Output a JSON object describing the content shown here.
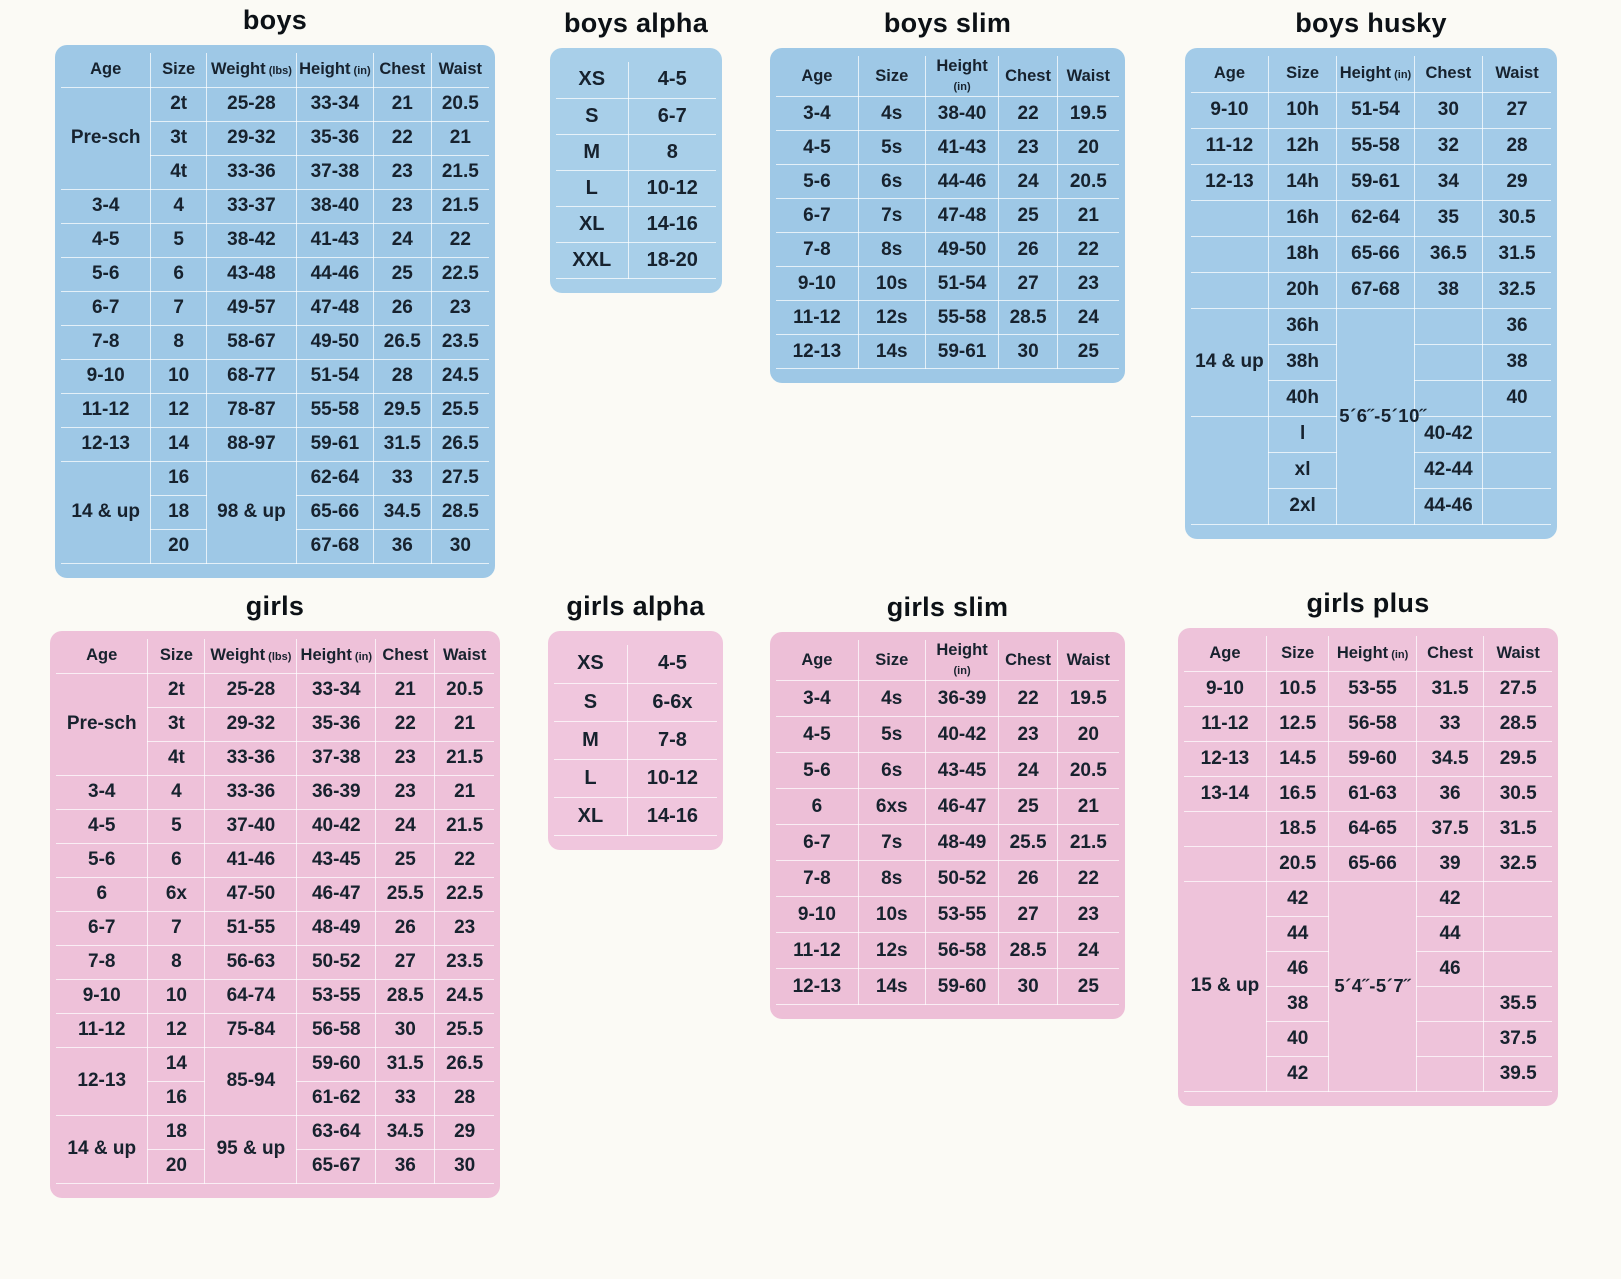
{
  "palette": {
    "page_bg": "#fbfaf5",
    "text": "#17222e",
    "title": "#0c1116",
    "grid_line": "rgba(255,255,255,0.72)"
  },
  "tables": [
    {
      "id": "boys",
      "title": "boys",
      "bg": "#9ec8e6",
      "headers": [
        "Age",
        "Size",
        {
          "text": "Weight",
          "unit": "(lbs)"
        },
        {
          "text": "Height",
          "unit": "(in)"
        },
        "Chest",
        "Waist"
      ],
      "rows": [
        [
          {
            "text": "Pre-sch",
            "rowspan": 3
          },
          "2t",
          "25-28",
          "33-34",
          "21",
          "20.5"
        ],
        [
          "3t",
          "29-32",
          "35-36",
          "22",
          "21"
        ],
        [
          "4t",
          "33-36",
          "37-38",
          "23",
          "21.5"
        ],
        [
          "3-4",
          "4",
          "33-37",
          "38-40",
          "23",
          "21.5"
        ],
        [
          "4-5",
          "5",
          "38-42",
          "41-43",
          "24",
          "22"
        ],
        [
          "5-6",
          "6",
          "43-48",
          "44-46",
          "25",
          "22.5"
        ],
        [
          "6-7",
          "7",
          "49-57",
          "47-48",
          "26",
          "23"
        ],
        [
          "7-8",
          "8",
          "58-67",
          "49-50",
          "26.5",
          "23.5"
        ],
        [
          "9-10",
          "10",
          "68-77",
          "51-54",
          "28",
          "24.5"
        ],
        [
          "11-12",
          "12",
          "78-87",
          "55-58",
          "29.5",
          "25.5"
        ],
        [
          "12-13",
          "14",
          "88-97",
          "59-61",
          "31.5",
          "26.5"
        ],
        [
          {
            "text": "14 & up",
            "rowspan": 3
          },
          "16",
          {
            "text": "98 & up",
            "rowspan": 3
          },
          "62-64",
          "33",
          "27.5"
        ],
        [
          "18",
          "65-66",
          "34.5",
          "28.5"
        ],
        [
          "20",
          "67-68",
          "36",
          "30"
        ]
      ]
    },
    {
      "id": "boys-alpha",
      "title": "boys alpha",
      "bg": "#a8cfe9",
      "headers": null,
      "rows": [
        [
          "XS",
          "4-5"
        ],
        [
          "S",
          "6-7"
        ],
        [
          "M",
          "8"
        ],
        [
          "L",
          "10-12"
        ],
        [
          "XL",
          "14-16"
        ],
        [
          "XXL",
          "18-20"
        ]
      ]
    },
    {
      "id": "boys-slim",
      "title": "boys slim",
      "bg": "#9ec8e6",
      "headers": [
        "Age",
        "Size",
        {
          "text": "Height",
          "unit": "(in)"
        },
        "Chest",
        "Waist"
      ],
      "rows": [
        [
          "3-4",
          "4s",
          "38-40",
          "22",
          "19.5"
        ],
        [
          "4-5",
          "5s",
          "41-43",
          "23",
          "20"
        ],
        [
          "5-6",
          "6s",
          "44-46",
          "24",
          "20.5"
        ],
        [
          "6-7",
          "7s",
          "47-48",
          "25",
          "21"
        ],
        [
          "7-8",
          "8s",
          "49-50",
          "26",
          "22"
        ],
        [
          "9-10",
          "10s",
          "51-54",
          "27",
          "23"
        ],
        [
          "11-12",
          "12s",
          "55-58",
          "28.5",
          "24"
        ],
        [
          "12-13",
          "14s",
          "59-61",
          "30",
          "25"
        ]
      ]
    },
    {
      "id": "boys-husky",
      "title": "boys husky",
      "bg": "#a3cbe8",
      "headers": [
        "Age",
        "Size",
        {
          "text": "Height",
          "unit": "(in)"
        },
        "Chest",
        "Waist"
      ],
      "rows": [
        [
          "9-10",
          "10h",
          "51-54",
          "30",
          "27"
        ],
        [
          "11-12",
          "12h",
          "55-58",
          "32",
          "28"
        ],
        [
          "12-13",
          "14h",
          "59-61",
          "34",
          "29"
        ],
        [
          "",
          "16h",
          "62-64",
          "35",
          "30.5"
        ],
        [
          "",
          "18h",
          "65-66",
          "36.5",
          "31.5"
        ],
        [
          "",
          "20h",
          "67-68",
          "38",
          "32.5"
        ],
        [
          {
            "text": "14 & up",
            "rowspan": 3
          },
          "36h",
          {
            "text": "5´6˝-5´10˝",
            "rowspan": 6,
            "cls": "note"
          },
          "",
          "36"
        ],
        [
          "38h",
          "",
          "38"
        ],
        [
          "40h",
          "",
          "40"
        ],
        [
          {
            "text": "",
            "rowspan": 3
          },
          "l",
          "40-42",
          ""
        ],
        [
          "xl",
          "42-44",
          ""
        ],
        [
          "2xl",
          "44-46",
          ""
        ]
      ]
    },
    {
      "id": "girls",
      "title": "girls",
      "bg": "#eec1d9",
      "headers": [
        "Age",
        "Size",
        {
          "text": "Weight",
          "unit": "(lbs)"
        },
        {
          "text": "Height",
          "unit": "(in)"
        },
        "Chest",
        "Waist"
      ],
      "rows": [
        [
          {
            "text": "Pre-sch",
            "rowspan": 3
          },
          "2t",
          "25-28",
          "33-34",
          "21",
          "20.5"
        ],
        [
          "3t",
          "29-32",
          "35-36",
          "22",
          "21"
        ],
        [
          "4t",
          "33-36",
          "37-38",
          "23",
          "21.5"
        ],
        [
          "3-4",
          "4",
          "33-36",
          "36-39",
          "23",
          "21"
        ],
        [
          "4-5",
          "5",
          "37-40",
          "40-42",
          "24",
          "21.5"
        ],
        [
          "5-6",
          "6",
          "41-46",
          "43-45",
          "25",
          "22"
        ],
        [
          "6",
          "6x",
          "47-50",
          "46-47",
          "25.5",
          "22.5"
        ],
        [
          "6-7",
          "7",
          "51-55",
          "48-49",
          "26",
          "23"
        ],
        [
          "7-8",
          "8",
          "56-63",
          "50-52",
          "27",
          "23.5"
        ],
        [
          "9-10",
          "10",
          "64-74",
          "53-55",
          "28.5",
          "24.5"
        ],
        [
          "11-12",
          "12",
          "75-84",
          "56-58",
          "30",
          "25.5"
        ],
        [
          {
            "text": "12-13",
            "rowspan": 2
          },
          "14",
          {
            "text": "85-94",
            "rowspan": 2
          },
          "59-60",
          "31.5",
          "26.5"
        ],
        [
          "16",
          "61-62",
          "33",
          "28"
        ],
        [
          {
            "text": "14 & up",
            "rowspan": 2
          },
          "18",
          {
            "text": "95 & up",
            "rowspan": 2
          },
          "63-64",
          "34.5",
          "29"
        ],
        [
          "20",
          "65-67",
          "36",
          "30"
        ]
      ]
    },
    {
      "id": "girls-alpha",
      "title": "girls alpha",
      "bg": "#f0c6dd",
      "headers": null,
      "rows": [
        [
          "XS",
          "4-5"
        ],
        [
          "S",
          "6-6x"
        ],
        [
          "M",
          "7-8"
        ],
        [
          "L",
          "10-12"
        ],
        [
          "XL",
          "14-16"
        ]
      ]
    },
    {
      "id": "girls-slim",
      "title": "girls slim",
      "bg": "#edbfd7",
      "headers": [
        "Age",
        "Size",
        {
          "text": "Height",
          "unit": "(in)"
        },
        "Chest",
        "Waist"
      ],
      "rows": [
        [
          "3-4",
          "4s",
          "36-39",
          "22",
          "19.5"
        ],
        [
          "4-5",
          "5s",
          "40-42",
          "23",
          "20"
        ],
        [
          "5-6",
          "6s",
          "43-45",
          "24",
          "20.5"
        ],
        [
          "6",
          "6xs",
          "46-47",
          "25",
          "21"
        ],
        [
          "6-7",
          "7s",
          "48-49",
          "25.5",
          "21.5"
        ],
        [
          "7-8",
          "8s",
          "50-52",
          "26",
          "22"
        ],
        [
          "9-10",
          "10s",
          "53-55",
          "27",
          "23"
        ],
        [
          "11-12",
          "12s",
          "56-58",
          "28.5",
          "24"
        ],
        [
          "12-13",
          "14s",
          "59-60",
          "30",
          "25"
        ]
      ]
    },
    {
      "id": "girls-plus",
      "title": "girls plus",
      "bg": "#eec3da",
      "headers": [
        "Age",
        "Size",
        {
          "text": "Height",
          "unit": "(in)"
        },
        "Chest",
        "Waist"
      ],
      "rows": [
        [
          "9-10",
          "10.5",
          "53-55",
          "31.5",
          "27.5"
        ],
        [
          "11-12",
          "12.5",
          "56-58",
          "33",
          "28.5"
        ],
        [
          "12-13",
          "14.5",
          "59-60",
          "34.5",
          "29.5"
        ],
        [
          "13-14",
          "16.5",
          "61-63",
          "36",
          "30.5"
        ],
        [
          "",
          "18.5",
          "64-65",
          "37.5",
          "31.5"
        ],
        [
          "",
          "20.5",
          "65-66",
          "39",
          "32.5"
        ],
        [
          {
            "text": "15 & up",
            "rowspan": 6
          },
          "42",
          {
            "text": "5´4˝-5´7˝",
            "rowspan": 6,
            "cls": "note"
          },
          "42",
          ""
        ],
        [
          "44",
          "44",
          ""
        ],
        [
          "46",
          "46",
          ""
        ],
        [
          "38",
          "",
          "35.5"
        ],
        [
          "40",
          "",
          "37.5"
        ],
        [
          "42",
          "",
          "39.5"
        ]
      ]
    }
  ]
}
